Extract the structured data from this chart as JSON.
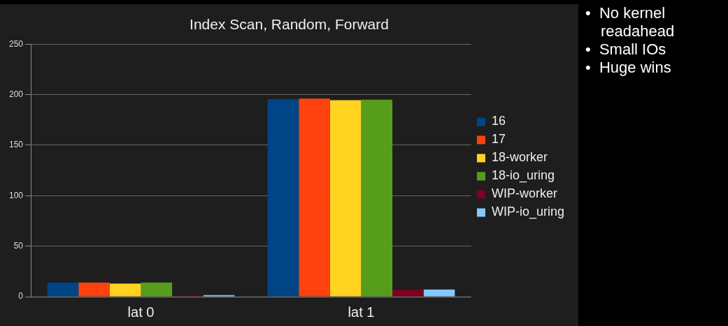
{
  "chart_data": {
    "type": "bar",
    "title": "Index Scan, Random, Forward",
    "categories": [
      "lat 0",
      "lat 1"
    ],
    "series": [
      {
        "name": "16",
        "color": "#004586",
        "values": [
          14,
          195.5
        ]
      },
      {
        "name": "17",
        "color": "#ff420e",
        "values": [
          14,
          196
        ]
      },
      {
        "name": "18-worker",
        "color": "#ffd320",
        "values": [
          13,
          194.5
        ]
      },
      {
        "name": "18-io_uring",
        "color": "#579d1c",
        "values": [
          14,
          195
        ]
      },
      {
        "name": "WIP-worker",
        "color": "#7e0021",
        "values": [
          1,
          7
        ]
      },
      {
        "name": "WIP-io_uring",
        "color": "#83caff",
        "values": [
          1.5,
          7
        ]
      }
    ],
    "ylim": [
      0,
      250
    ],
    "yticks": [
      0,
      50,
      100,
      150,
      200,
      250
    ],
    "grid": "y",
    "legend": "right",
    "annotations": [
      "•  No kernel readahead",
      "•  Small IOs",
      "•  Huge wins"
    ]
  }
}
